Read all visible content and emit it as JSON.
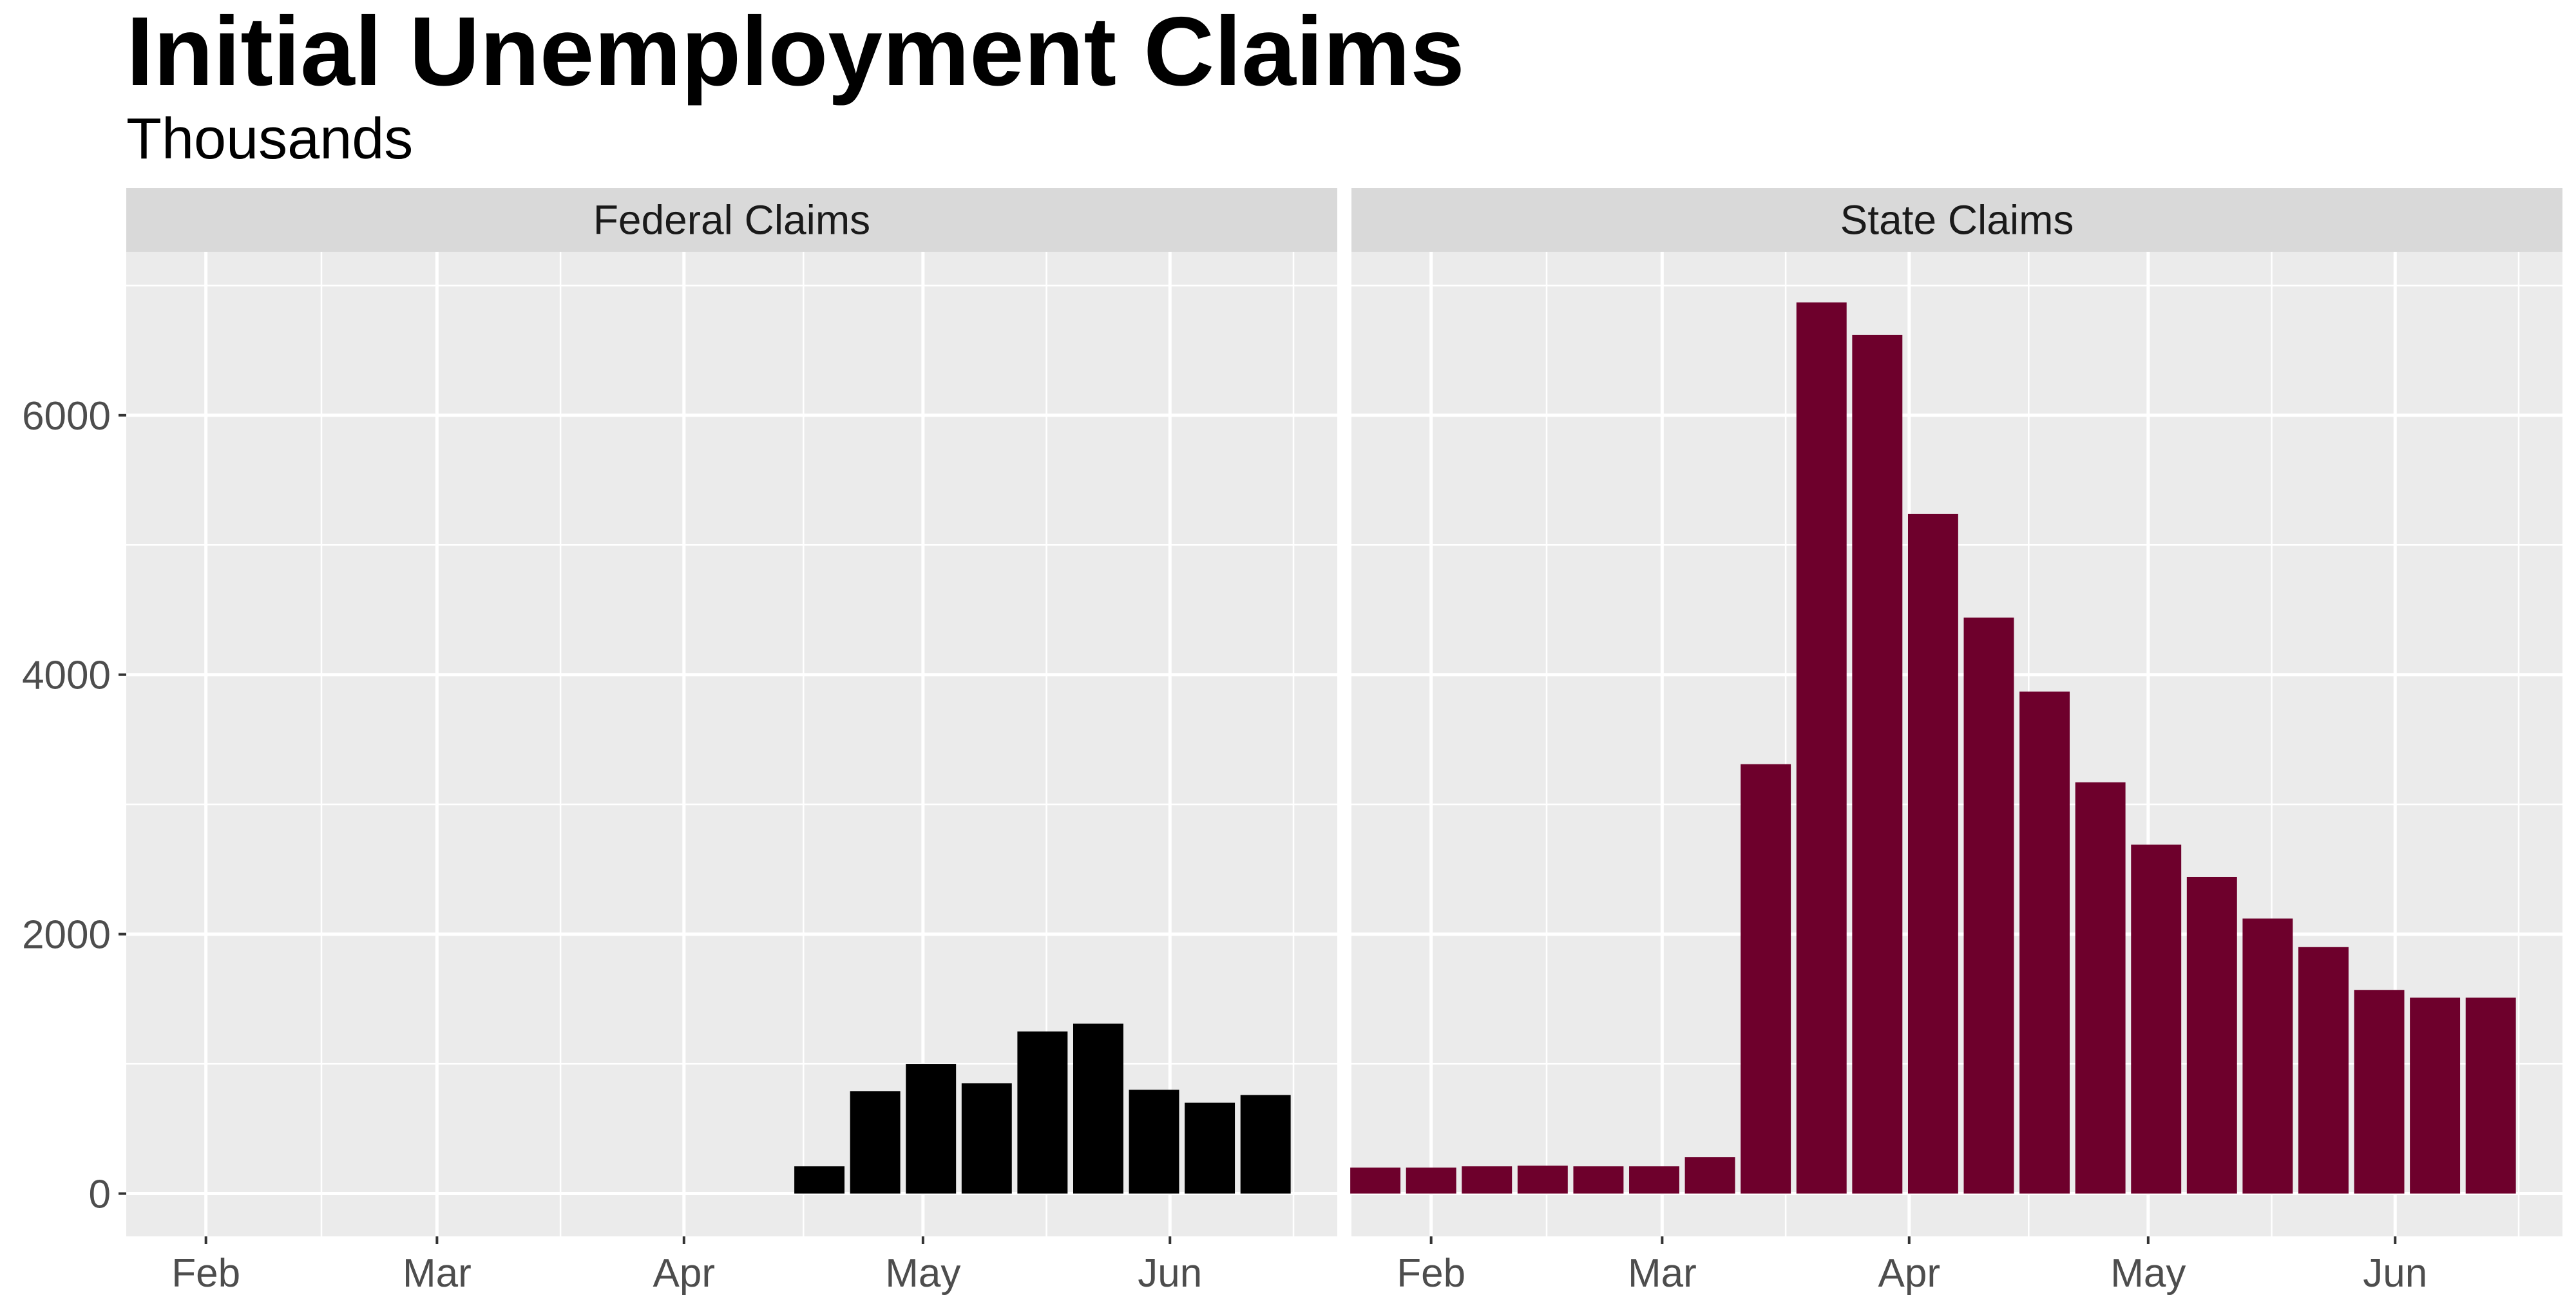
{
  "chart_data": {
    "type": "bar",
    "title": "Initial Unemployment Claims",
    "subtitle": "Thousands",
    "xlabel": "",
    "ylabel": "",
    "ylim": [
      -330,
      7260
    ],
    "y_ticks": [
      0,
      2000,
      4000,
      6000
    ],
    "y_tick_labels": [
      "0",
      "2000",
      "4000",
      "6000"
    ],
    "x_ticks": [
      "2020-02-01",
      "2020-03-01",
      "2020-04-01",
      "2020-05-01",
      "2020-06-01"
    ],
    "x_tick_labels": [
      "Feb",
      "Mar",
      "Apr",
      "May",
      "Jun"
    ],
    "xlim": [
      "2020-01-22",
      "2020-06-22"
    ],
    "grid": true,
    "facets": [
      "Federal Claims",
      "State Claims"
    ],
    "series": [
      {
        "facet": "Federal Claims",
        "color": "#000000",
        "dates": [
          "2020-04-18",
          "2020-04-25",
          "2020-05-02",
          "2020-05-09",
          "2020-05-16",
          "2020-05-23",
          "2020-05-30",
          "2020-06-06",
          "2020-06-13"
        ],
        "values": [
          210,
          790,
          1000,
          850,
          1250,
          1310,
          800,
          700,
          760
        ]
      },
      {
        "facet": "State Claims",
        "color": "#6e002c",
        "dates": [
          "2020-01-25",
          "2020-02-01",
          "2020-02-08",
          "2020-02-15",
          "2020-02-22",
          "2020-02-29",
          "2020-03-07",
          "2020-03-14",
          "2020-03-21",
          "2020-03-28",
          "2020-04-04",
          "2020-04-11",
          "2020-04-18",
          "2020-04-25",
          "2020-05-02",
          "2020-05-09",
          "2020-05-16",
          "2020-05-23",
          "2020-05-30",
          "2020-06-06",
          "2020-06-13"
        ],
        "values": [
          200,
          200,
          210,
          215,
          210,
          210,
          280,
          3310,
          6870,
          6620,
          5240,
          4440,
          3870,
          3170,
          2690,
          2440,
          2120,
          1900,
          1570,
          1510,
          1510
        ]
      }
    ]
  }
}
